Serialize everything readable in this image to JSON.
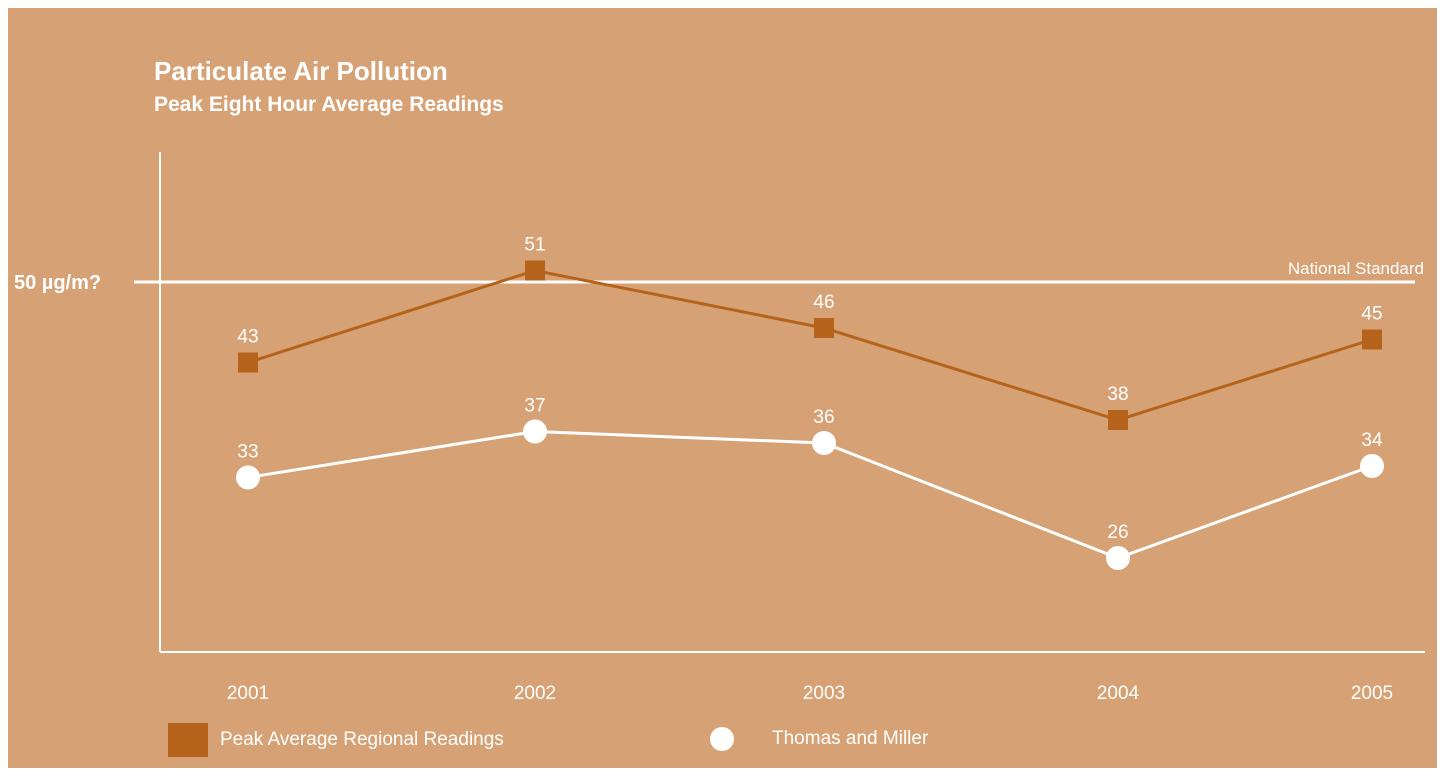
{
  "chart_data": {
    "type": "line",
    "title": "Particulate Air Pollution",
    "subtitle": "Peak Eight Hour Average Readings",
    "x": [
      "2001",
      "2002",
      "2003",
      "2004",
      "2005"
    ],
    "series": [
      {
        "name": "Peak Average Regional Readings",
        "values": [
          43,
          51,
          46,
          38,
          45
        ],
        "color": "#b5621a",
        "marker": "square"
      },
      {
        "name": "Thomas and Miller",
        "values": [
          33,
          37,
          36,
          26,
          34
        ],
        "color": "#ffffff",
        "marker": "circle"
      }
    ],
    "reference_line": {
      "value": 50,
      "label": "National Standard",
      "axis_label": "50 µg/m?"
    },
    "ylim": [
      20,
      55
    ],
    "grid": false,
    "legend_position": "bottom"
  },
  "colors": {
    "background": "#d6a275",
    "regional": "#b5621a",
    "company": "#ffffff"
  }
}
